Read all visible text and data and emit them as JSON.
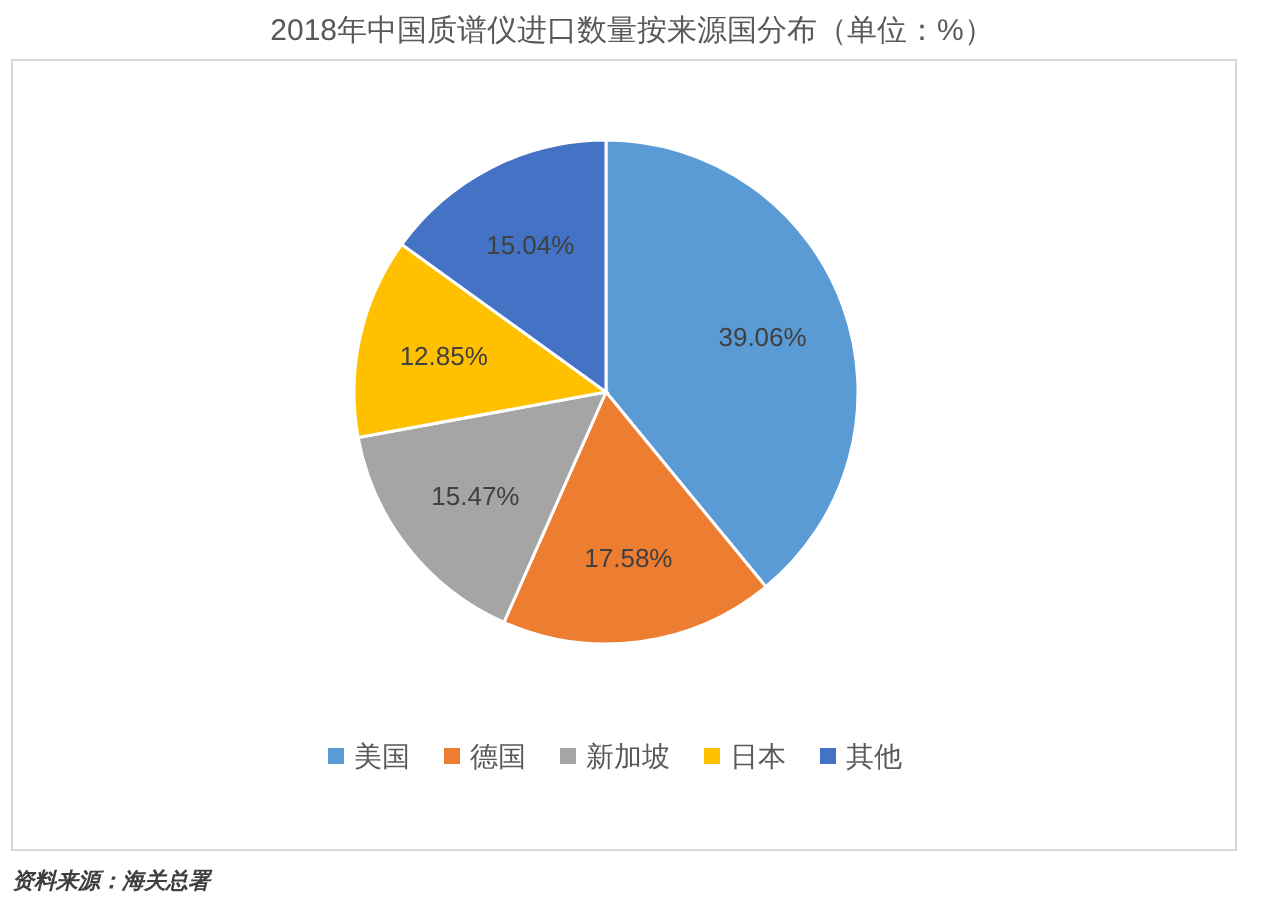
{
  "chart_data": {
    "type": "pie",
    "title": "2018年中国质谱仪进口数量按来源国分布（单位：%）",
    "categories": [
      "美国",
      "德国",
      "新加坡",
      "日本",
      "其他"
    ],
    "values": [
      39.06,
      17.58,
      15.47,
      12.85,
      15.04
    ],
    "colors": [
      "#5b9bd5",
      "#ed7d31",
      "#a5a5a5",
      "#ffc000",
      "#4472c4"
    ],
    "value_labels": [
      "39.06%",
      "17.58%",
      "15.47%",
      "12.85%",
      "15.04%"
    ],
    "legend": "bottom",
    "annotations": [
      "资料来源：海关总署"
    ]
  }
}
